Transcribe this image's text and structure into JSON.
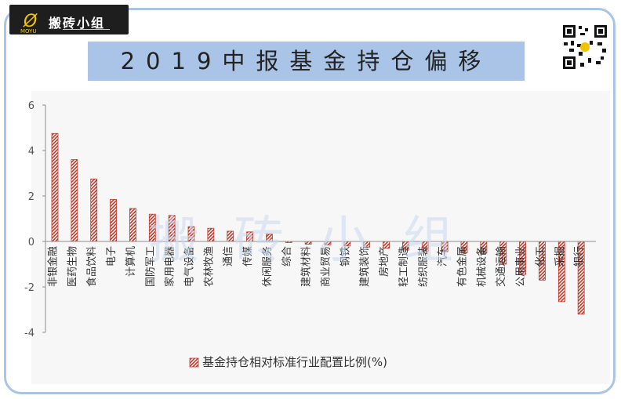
{
  "logo": {
    "brand_text": "搬砖小组",
    "mark": "Ø",
    "moyu": "MOYU"
  },
  "title": "2019中报基金持仓偏移",
  "watermark": "搬砖小组",
  "colors": {
    "frame": "#a9c4e6",
    "title_bg": "#a9c4e6",
    "bar": "#c0392b",
    "plot_bg": "#f7f7f7"
  },
  "icons": {
    "qr": "qr-code-icon"
  },
  "chart_data": {
    "type": "bar",
    "categories": [
      "非银金融",
      "医药生物",
      "食品饮料",
      "电子",
      "计算机",
      "国防军工",
      "家用电器",
      "电气设备",
      "农林牧渔",
      "通信",
      "传媒",
      "休闲服务",
      "综合",
      "建筑材料",
      "商业贸易",
      "钢铁",
      "建筑装饰",
      "房地产",
      "轻工制造",
      "纺织服装",
      "汽车",
      "有色金属",
      "机械设备",
      "交通运输",
      "公用事业",
      "化工",
      "采掘",
      "银行"
    ],
    "series": [
      {
        "name": "基金持仓相对标准行业配置比例(%)",
        "values": [
          4.75,
          3.6,
          2.75,
          1.85,
          1.45,
          1.2,
          1.15,
          0.65,
          0.58,
          0.45,
          0.42,
          0.32,
          -0.05,
          -0.12,
          -0.15,
          -0.2,
          -0.25,
          -0.3,
          -0.38,
          -0.42,
          -0.45,
          -0.5,
          -0.52,
          -1.0,
          -1.45,
          -1.7,
          -2.65,
          -3.2
        ]
      }
    ],
    "yticks": [
      6,
      4,
      2,
      0,
      -2,
      -4
    ],
    "ylim": [
      -4,
      6
    ],
    "legend_position": "bottom",
    "grid": false,
    "bar_style": "hatched"
  }
}
